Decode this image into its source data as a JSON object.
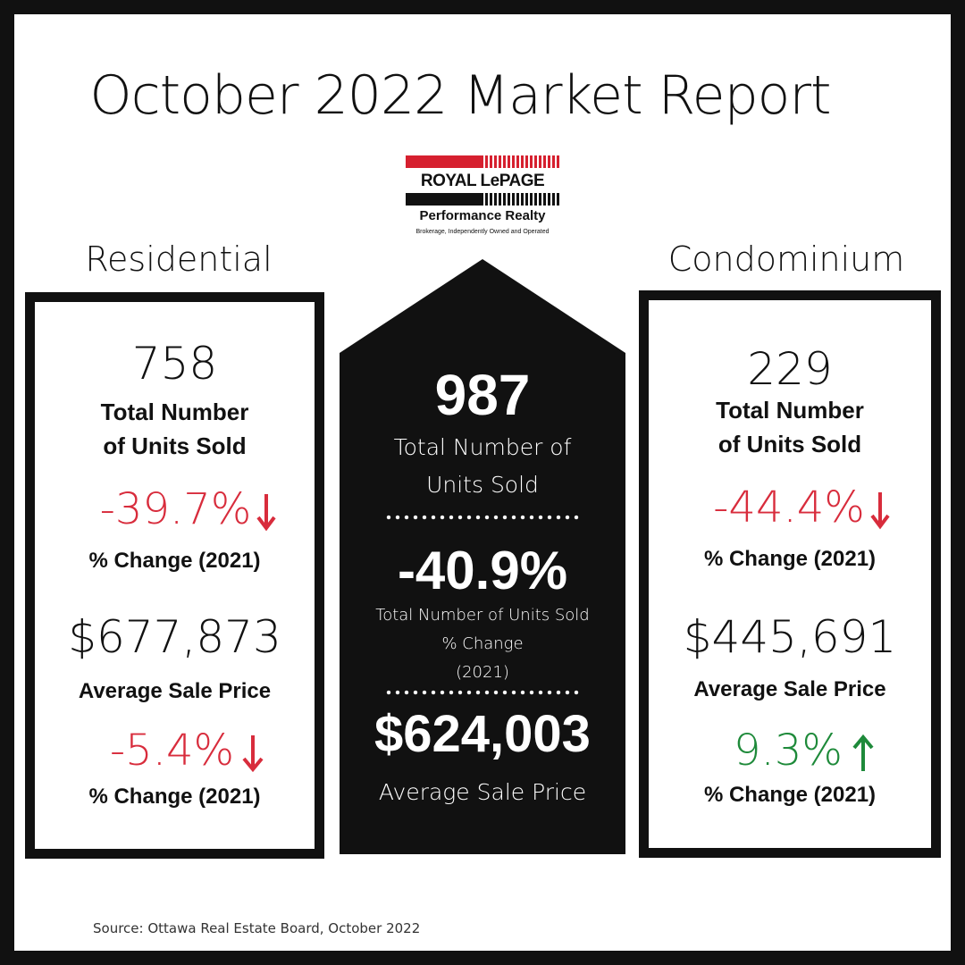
{
  "title": "October 2022 Market Report",
  "logo": {
    "brand": "ROYAL LePAGE",
    "office": "Performance Realty",
    "tagline": "Brokerage, Independently Owned and Operated"
  },
  "residential": {
    "heading": "Residential",
    "units": "758",
    "units_label_1": "Total Number",
    "units_label_2": "of Units Sold",
    "units_change": "-39.7%",
    "units_change_label": "% Change (2021)",
    "price": "$677,873",
    "price_label": "Average Sale Price",
    "price_change": "-5.4%",
    "price_change_label": "% Change (2021)"
  },
  "total": {
    "units": "987",
    "units_label_1": "Total Number of",
    "units_label_2": "Units Sold",
    "change": "-40.9%",
    "change_label_1": "Total Number of Units Sold",
    "change_label_2": "% Change",
    "change_label_3": "(2021)",
    "price": "$624,003",
    "price_label": "Average Sale Price"
  },
  "condominium": {
    "heading": "Condominium",
    "units": "229",
    "units_label_1": "Total Number",
    "units_label_2": "of Units Sold",
    "units_change": "-44.4%",
    "units_change_label": "% Change (2021)",
    "price": "$445,691",
    "price_label": "Average Sale Price",
    "price_change": "9.3%",
    "price_change_label": "% Change (2021)"
  },
  "source": "Source: Ottawa Real Estate Board, October 2022",
  "colors": {
    "negative": "#d82c3c",
    "positive": "#1e8a3a",
    "dark": "#111111"
  }
}
